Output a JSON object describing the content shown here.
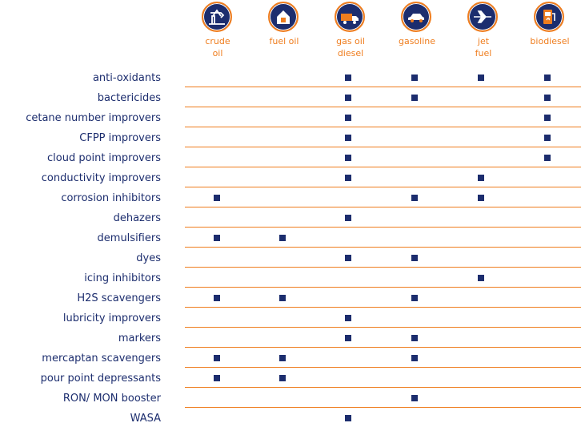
{
  "columns": [
    {
      "key": "crude_oil",
      "label": "crude\noil",
      "icon": "oil-pump-icon"
    },
    {
      "key": "fuel_oil",
      "label": "fuel oil",
      "icon": "house-icon"
    },
    {
      "key": "gas_oil_diesel",
      "label": "gas oil\ndiesel",
      "icon": "truck-icon"
    },
    {
      "key": "gasoline",
      "label": "gasoline",
      "icon": "car-icon"
    },
    {
      "key": "jet_fuel",
      "label": "jet\nfuel",
      "icon": "airplane-icon"
    },
    {
      "key": "biodiesel",
      "label": "biodiesel",
      "icon": "fuel-pump-icon"
    }
  ],
  "rows": [
    {
      "label": "anti-oxidants",
      "marks": [
        false,
        false,
        true,
        true,
        true,
        true
      ]
    },
    {
      "label": "bactericides",
      "marks": [
        false,
        false,
        true,
        true,
        false,
        true
      ]
    },
    {
      "label": "cetane number improvers",
      "marks": [
        false,
        false,
        true,
        false,
        false,
        true
      ]
    },
    {
      "label": "CFPP improvers",
      "marks": [
        false,
        false,
        true,
        false,
        false,
        true
      ]
    },
    {
      "label": "cloud point improvers",
      "marks": [
        false,
        false,
        true,
        false,
        false,
        true
      ]
    },
    {
      "label": "conductivity improvers",
      "marks": [
        false,
        false,
        true,
        false,
        true,
        false
      ]
    },
    {
      "label": "corrosion inhibitors",
      "marks": [
        true,
        false,
        false,
        true,
        true,
        false
      ]
    },
    {
      "label": "dehazers",
      "marks": [
        false,
        false,
        true,
        false,
        false,
        false
      ]
    },
    {
      "label": "demulsifiers",
      "marks": [
        true,
        true,
        false,
        false,
        false,
        false
      ]
    },
    {
      "label": "dyes",
      "marks": [
        false,
        false,
        true,
        true,
        false,
        false
      ]
    },
    {
      "label": "icing inhibitors",
      "marks": [
        false,
        false,
        false,
        false,
        true,
        false
      ]
    },
    {
      "label": "H2S scavengers",
      "marks": [
        true,
        true,
        false,
        true,
        false,
        false
      ]
    },
    {
      "label": "lubricity improvers",
      "marks": [
        false,
        false,
        true,
        false,
        false,
        false
      ]
    },
    {
      "label": "markers",
      "marks": [
        false,
        false,
        true,
        true,
        false,
        false
      ]
    },
    {
      "label": "mercaptan scavengers",
      "marks": [
        true,
        true,
        false,
        true,
        false,
        false
      ]
    },
    {
      "label": "pour point depressants",
      "marks": [
        true,
        true,
        false,
        false,
        false,
        false
      ]
    },
    {
      "label": "RON/ MON booster",
      "marks": [
        false,
        false,
        false,
        true,
        false,
        false
      ]
    },
    {
      "label": "WASA",
      "marks": [
        false,
        false,
        true,
        false,
        false,
        false
      ]
    }
  ],
  "colors": {
    "accent": "#ef7d1e",
    "navy": "#1c2d6e"
  }
}
